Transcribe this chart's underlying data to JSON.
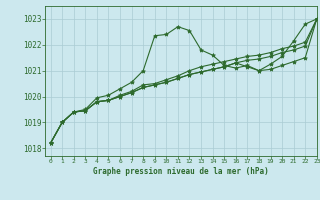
{
  "bg_color": "#cce8ee",
  "grid_color": "#aaccd4",
  "line_color": "#2d6a2d",
  "xlabel": "Graphe pression niveau de la mer (hPa)",
  "xlim": [
    -0.5,
    23
  ],
  "ylim": [
    1017.7,
    1023.5
  ],
  "yticks": [
    1018,
    1019,
    1020,
    1021,
    1022,
    1023
  ],
  "xticks": [
    0,
    1,
    2,
    3,
    4,
    5,
    6,
    7,
    8,
    9,
    10,
    11,
    12,
    13,
    14,
    15,
    16,
    17,
    18,
    19,
    20,
    21,
    22,
    23
  ],
  "series": [
    [
      1018.2,
      1019.0,
      1019.4,
      1019.5,
      1019.95,
      1020.05,
      1020.3,
      1020.55,
      1021.0,
      1022.35,
      1022.4,
      1022.7,
      1022.55,
      1021.8,
      1021.6,
      1021.2,
      1021.1,
      1021.2,
      1021.0,
      1021.25,
      1021.55,
      1022.15,
      1022.8,
      1023.0
    ],
    [
      1018.2,
      1019.0,
      1019.4,
      1019.45,
      1019.8,
      1019.85,
      1020.05,
      1020.2,
      1020.45,
      1020.5,
      1020.65,
      1020.8,
      1021.0,
      1021.15,
      1021.25,
      1021.35,
      1021.45,
      1021.55,
      1021.6,
      1021.7,
      1021.85,
      1021.95,
      1022.1,
      1023.0
    ],
    [
      1018.2,
      1019.0,
      1019.4,
      1019.45,
      1019.8,
      1019.85,
      1020.0,
      1020.15,
      1020.35,
      1020.45,
      1020.55,
      1020.7,
      1020.85,
      1020.95,
      1021.05,
      1021.15,
      1021.3,
      1021.4,
      1021.45,
      1021.55,
      1021.7,
      1021.8,
      1021.95,
      1023.0
    ],
    [
      1018.2,
      1019.0,
      1019.4,
      1019.45,
      1019.8,
      1019.85,
      1020.0,
      1020.15,
      1020.35,
      1020.45,
      1020.55,
      1020.7,
      1020.85,
      1020.95,
      1021.05,
      1021.15,
      1021.3,
      1021.15,
      1021.0,
      1021.05,
      1021.2,
      1021.35,
      1021.5,
      1023.0
    ]
  ]
}
